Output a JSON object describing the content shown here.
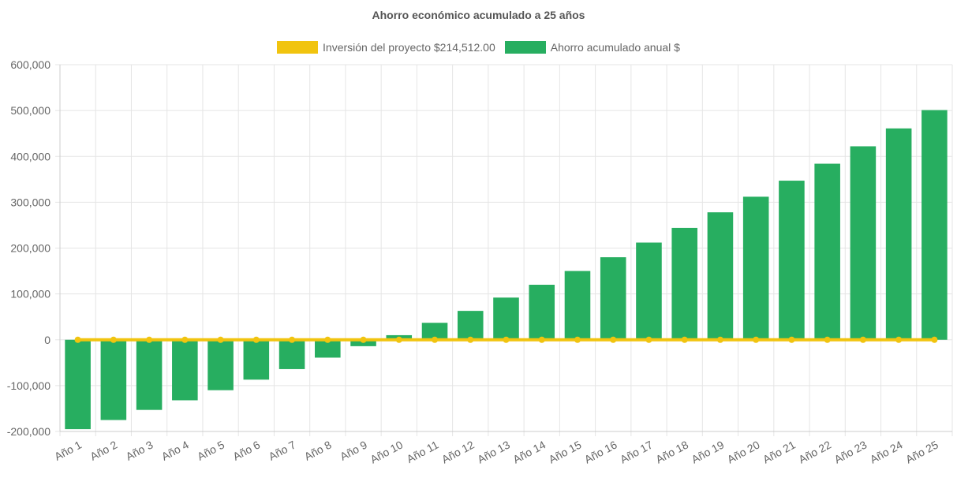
{
  "chart_data": {
    "type": "bar",
    "title": "Ahorro económico acumulado a 25 años",
    "xlabel": "",
    "ylabel": "",
    "ylim": [
      -200000,
      600000
    ],
    "yticks": [
      "600,000",
      "500,000",
      "400,000",
      "300,000",
      "200,000",
      "100,000",
      "0",
      "-100,000",
      "-200,000"
    ],
    "ytick_values": [
      600000,
      500000,
      400000,
      300000,
      200000,
      100000,
      0,
      -100000,
      -200000
    ],
    "grid": true,
    "legend_placement": "top-center",
    "categories": [
      "Año 1",
      "Año 2",
      "Año 3",
      "Año 4",
      "Año 5",
      "Año 6",
      "Año 7",
      "Año 8",
      "Año 9",
      "Año 10",
      "Año 11",
      "Año 12",
      "Año 13",
      "Año 14",
      "Año 15",
      "Año 16",
      "Año 17",
      "Año 18",
      "Año 19",
      "Año 20",
      "Año 21",
      "Año 22",
      "Año 23",
      "Año 24",
      "Año 25"
    ],
    "series": [
      {
        "name": "Inversión del proyecto $214,512.00",
        "type": "line",
        "color": "#f1c40f",
        "values": [
          0,
          0,
          0,
          0,
          0,
          0,
          0,
          0,
          0,
          0,
          0,
          0,
          0,
          0,
          0,
          0,
          0,
          0,
          0,
          0,
          0,
          0,
          0,
          0,
          0
        ]
      },
      {
        "name": "Ahorro acumulado anual $",
        "type": "bar",
        "color": "#27ae60",
        "values": [
          -195000,
          -175000,
          -153000,
          -132000,
          -110000,
          -87000,
          -64000,
          -39000,
          -14000,
          10000,
          37000,
          63000,
          92000,
          120000,
          150000,
          180000,
          212000,
          244000,
          278000,
          312000,
          347000,
          384000,
          422000,
          461000,
          501000
        ]
      }
    ]
  }
}
